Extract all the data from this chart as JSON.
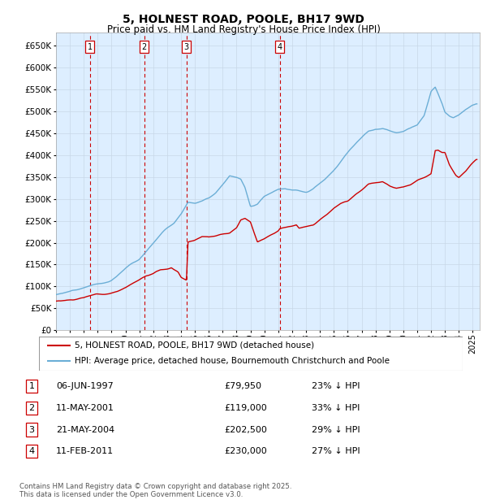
{
  "title": "5, HOLNEST ROAD, POOLE, BH17 9WD",
  "subtitle": "Price paid vs. HM Land Registry's House Price Index (HPI)",
  "legend_line1": "5, HOLNEST ROAD, POOLE, BH17 9WD (detached house)",
  "legend_line2": "HPI: Average price, detached house, Bournemouth Christchurch and Poole",
  "footer_line1": "Contains HM Land Registry data © Crown copyright and database right 2025.",
  "footer_line2": "This data is licensed under the Open Government Licence v3.0.",
  "transactions": [
    {
      "num": 1,
      "date": "06-JUN-1997",
      "price": 79950,
      "pct": "23%",
      "x_year": 1997.44
    },
    {
      "num": 2,
      "date": "11-MAY-2001",
      "price": 119000,
      "pct": "33%",
      "x_year": 2001.36
    },
    {
      "num": 3,
      "date": "21-MAY-2004",
      "price": 202500,
      "pct": "29%",
      "x_year": 2004.39
    },
    {
      "num": 4,
      "date": "11-FEB-2011",
      "price": 230000,
      "pct": "27%",
      "x_year": 2011.12
    }
  ],
  "hpi_color": "#6baed6",
  "price_color": "#cc0000",
  "vline_color": "#cc0000",
  "bg_color": "#ddeeff",
  "grid_color": "#c8d8e8",
  "box_color": "#cc0000",
  "ylim": [
    0,
    680000
  ],
  "yticks": [
    0,
    50000,
    100000,
    150000,
    200000,
    250000,
    300000,
    350000,
    400000,
    450000,
    500000,
    550000,
    600000,
    650000
  ],
  "xlim_start": 1995.0,
  "xlim_end": 2025.5,
  "xticks": [
    1995,
    1996,
    1997,
    1998,
    1999,
    2000,
    2001,
    2002,
    2003,
    2004,
    2005,
    2006,
    2007,
    2008,
    2009,
    2010,
    2011,
    2012,
    2013,
    2014,
    2015,
    2016,
    2017,
    2018,
    2019,
    2020,
    2021,
    2022,
    2023,
    2024,
    2025
  ]
}
